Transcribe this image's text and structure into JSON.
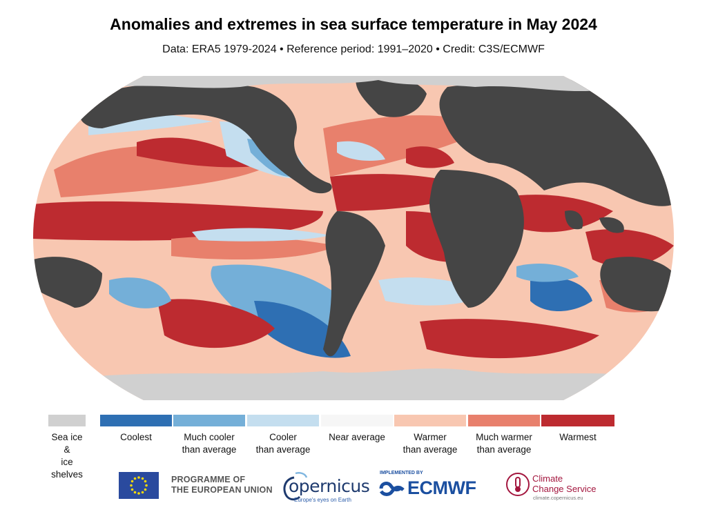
{
  "header": {
    "title": "Anomalies and extremes in sea surface temperature in May 2024",
    "subtitle": "Data: ERA5 1979-2024 • Reference period: 1991–2020 • Credit: C3S/ECMWF"
  },
  "map": {
    "projection": "Robinson-like global",
    "colors": {
      "land": "#454545",
      "sea_ice": "#d0d0d0",
      "coolest": "#2e6fb3",
      "much_cooler": "#74afd8",
      "cooler": "#c4deef",
      "near_average": "#f6f6f6",
      "warmer": "#f8c7b1",
      "much_warmer": "#e8806c",
      "warmest": "#bd2b30"
    }
  },
  "legend": [
    {
      "label": "Sea ice &\nice shelves",
      "color": "#d0d0d0"
    },
    {
      "label": "Coolest",
      "color": "#2e6fb3"
    },
    {
      "label": "Much cooler\nthan average",
      "color": "#74afd8"
    },
    {
      "label": "Cooler\nthan average",
      "color": "#c4deef"
    },
    {
      "label": "Near average",
      "color": "#f6f6f6"
    },
    {
      "label": "Warmer\nthan average",
      "color": "#f8c7b1"
    },
    {
      "label": "Much warmer\nthan average",
      "color": "#e8806c"
    },
    {
      "label": "Warmest",
      "color": "#bd2b30"
    }
  ],
  "footer": {
    "programme": "PROGRAMME OF\nTHE EUROPEAN UNION",
    "copernicus": "opernicus",
    "copernicus_tagline": "Europe's eyes on Earth",
    "implemented_by": "IMPLEMENTED BY",
    "ecmwf": "ECMWF",
    "climate_service": "Climate\nChange Service",
    "climate_url": "climate.copernicus.eu"
  }
}
